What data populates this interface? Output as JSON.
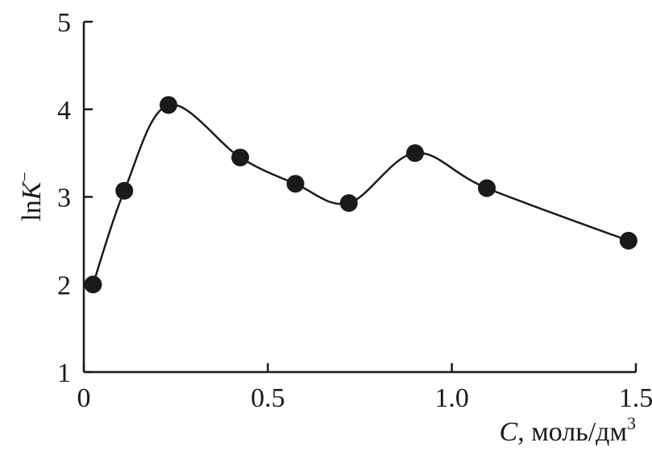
{
  "chart_data": {
    "type": "line",
    "title": "",
    "xlabel": {
      "var": "C",
      "rest": ", моль/дм",
      "sup": "3"
    },
    "ylabel": {
      "prefix": "ln",
      "var": "K",
      "sup": "−"
    },
    "xlim": [
      0,
      1.5
    ],
    "ylim": [
      1,
      5
    ],
    "xticks": [
      0,
      0.5,
      1.0,
      1.5
    ],
    "xtick_labels": [
      "0",
      "0.5",
      "1.0",
      "1.5"
    ],
    "yticks": [
      1,
      2,
      3,
      4,
      5
    ],
    "ytick_labels": [
      "1",
      "2",
      "3",
      "4",
      "5"
    ],
    "grid": false,
    "smooth": true,
    "x": [
      0.025,
      0.11,
      0.23,
      0.425,
      0.575,
      0.72,
      0.9,
      1.095,
      1.48
    ],
    "y": [
      2.0,
      3.07,
      4.05,
      3.45,
      3.15,
      2.93,
      3.5,
      3.1,
      2.5
    ]
  }
}
